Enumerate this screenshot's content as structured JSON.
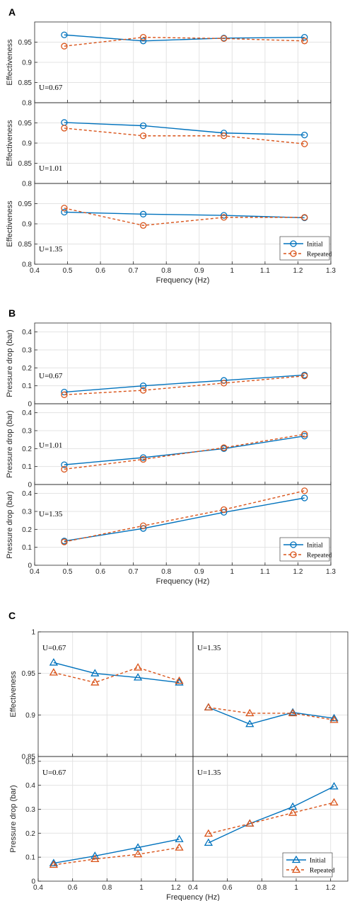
{
  "colors": {
    "initial": "#0072BD",
    "repeated": "#D95319",
    "grid": "#e3e3e3",
    "axis": "#262626"
  },
  "chart_data": [
    {
      "panel": "A",
      "type": "line",
      "layout": "stacked",
      "xlabel": "Frequency (Hz)",
      "xlim": [
        0.4,
        1.3
      ],
      "xticks": [
        "0.4",
        "0.5",
        "0.6",
        "0.7",
        "0.8",
        "0.9",
        "1",
        "1.1",
        "1.2",
        "1.3"
      ],
      "marker": "circle",
      "legend": {
        "entries": [
          "Initial",
          "Repeated"
        ],
        "placement": "bottom-right of last subplot"
      },
      "subplots": [
        {
          "annotation": "U=0.67",
          "ylabel": "Effectiveness",
          "ylim": [
            0.8,
            1.0
          ],
          "yticks": [
            "0.8",
            "0.85",
            "0.9",
            "0.95"
          ],
          "series": [
            {
              "name": "Initial",
              "x": [
                0.49,
                0.73,
                0.975,
                1.22
              ],
              "y": [
                0.968,
                0.953,
                0.96,
                0.962
              ]
            },
            {
              "name": "Repeated",
              "x": [
                0.49,
                0.73,
                0.975,
                1.22
              ],
              "y": [
                0.94,
                0.962,
                0.959,
                0.953
              ]
            }
          ]
        },
        {
          "annotation": "U=1.01",
          "ylabel": "Effectiveness",
          "ylim": [
            0.8,
            1.0
          ],
          "yticks": [
            "0.8",
            "0.85",
            "0.9",
            "0.95"
          ],
          "series": [
            {
              "name": "Initial",
              "x": [
                0.49,
                0.73,
                0.975,
                1.22
              ],
              "y": [
                0.951,
                0.943,
                0.925,
                0.92
              ]
            },
            {
              "name": "Repeated",
              "x": [
                0.49,
                0.73,
                0.975,
                1.22
              ],
              "y": [
                0.937,
                0.918,
                0.918,
                0.898
              ]
            }
          ]
        },
        {
          "annotation": "U=1.35",
          "ylabel": "Effectiveness",
          "ylim": [
            0.8,
            1.0
          ],
          "yticks": [
            "0.8",
            "0.85",
            "0.9",
            "0.95"
          ],
          "series": [
            {
              "name": "Initial",
              "x": [
                0.49,
                0.73,
                0.975,
                1.22
              ],
              "y": [
                0.929,
                0.924,
                0.921,
                0.915
              ]
            },
            {
              "name": "Repeated",
              "x": [
                0.49,
                0.73,
                0.975,
                1.22
              ],
              "y": [
                0.939,
                0.896,
                0.916,
                0.916
              ]
            }
          ]
        }
      ]
    },
    {
      "panel": "B",
      "type": "line",
      "layout": "stacked",
      "xlabel": "Frequency (Hz)",
      "xlim": [
        0.4,
        1.3
      ],
      "xticks": [
        "0.4",
        "0.5",
        "0.6",
        "0.7",
        "0.8",
        "0.9",
        "1",
        "1.1",
        "1.2",
        "1.3"
      ],
      "marker": "circle",
      "legend": {
        "entries": [
          "Initial",
          "Repeated"
        ],
        "placement": "bottom-right of last subplot"
      },
      "subplots": [
        {
          "annotation": "U=0.67",
          "ylabel": "Pressure drop (bar)",
          "ylim": [
            0,
            0.45
          ],
          "yticks": [
            "0",
            "0.1",
            "0.2",
            "0.3",
            "0.4"
          ],
          "series": [
            {
              "name": "Initial",
              "x": [
                0.49,
                0.73,
                0.975,
                1.22
              ],
              "y": [
                0.065,
                0.1,
                0.13,
                0.16
              ]
            },
            {
              "name": "Repeated",
              "x": [
                0.49,
                0.73,
                0.975,
                1.22
              ],
              "y": [
                0.05,
                0.075,
                0.115,
                0.155
              ]
            }
          ]
        },
        {
          "annotation": "U=1.01",
          "ylabel": "Pressure drop (bar)",
          "ylim": [
            0,
            0.45
          ],
          "yticks": [
            "0",
            "0.1",
            "0.2",
            "0.3",
            "0.4"
          ],
          "series": [
            {
              "name": "Initial",
              "x": [
                0.49,
                0.73,
                0.975,
                1.22
              ],
              "y": [
                0.11,
                0.15,
                0.2,
                0.27
              ]
            },
            {
              "name": "Repeated",
              "x": [
                0.49,
                0.73,
                0.975,
                1.22
              ],
              "y": [
                0.085,
                0.14,
                0.205,
                0.28
              ]
            }
          ]
        },
        {
          "annotation": "U=1.35",
          "ylabel": "Pressure drop (bar)",
          "ylim": [
            0,
            0.45
          ],
          "yticks": [
            "0",
            "0.1",
            "0.2",
            "0.3",
            "0.4"
          ],
          "series": [
            {
              "name": "Initial",
              "x": [
                0.49,
                0.73,
                0.975,
                1.22
              ],
              "y": [
                0.135,
                0.205,
                0.295,
                0.375
              ]
            },
            {
              "name": "Repeated",
              "x": [
                0.49,
                0.73,
                0.975,
                1.22
              ],
              "y": [
                0.13,
                0.22,
                0.31,
                0.415
              ]
            }
          ]
        }
      ]
    },
    {
      "panel": "C",
      "type": "line",
      "layout": "grid-2x2",
      "xlabel": "Frequency (Hz)",
      "xlim": [
        0.4,
        1.3
      ],
      "xticks": [
        "0.4",
        "0.6",
        "0.8",
        "1",
        "1.2"
      ],
      "marker": "triangle",
      "legend": {
        "entries": [
          "Initial",
          "Repeated"
        ],
        "placement": "bottom-right of last subplot"
      },
      "rows": [
        {
          "ylabel": "Effectiveness",
          "ylim": [
            0.85,
            1.0
          ],
          "yticks": [
            "0.85",
            "0.9",
            "0.95",
            "1"
          ]
        },
        {
          "ylabel": "Pressure drop (bar)",
          "ylim": [
            0,
            0.52
          ],
          "yticks": [
            "0",
            "0.1",
            "0.2",
            "0.3",
            "0.4",
            "0.5"
          ]
        }
      ],
      "subplots": [
        {
          "row": 0,
          "col": 0,
          "annotation": "U=0.67",
          "series": [
            {
              "name": "Initial",
              "x": [
                0.49,
                0.73,
                0.98,
                1.22
              ],
              "y": [
                0.963,
                0.95,
                0.945,
                0.939
              ]
            },
            {
              "name": "Repeated",
              "x": [
                0.49,
                0.73,
                0.98,
                1.22
              ],
              "y": [
                0.951,
                0.939,
                0.957,
                0.941
              ]
            }
          ]
        },
        {
          "row": 0,
          "col": 1,
          "annotation": "U=1.35",
          "series": [
            {
              "name": "Initial",
              "x": [
                0.49,
                0.73,
                0.98,
                1.22
              ],
              "y": [
                0.909,
                0.889,
                0.903,
                0.896
              ]
            },
            {
              "name": "Repeated",
              "x": [
                0.49,
                0.73,
                0.98,
                1.22
              ],
              "y": [
                0.909,
                0.902,
                0.902,
                0.894
              ]
            }
          ]
        },
        {
          "row": 1,
          "col": 0,
          "annotation": "U=0.67",
          "series": [
            {
              "name": "Initial",
              "x": [
                0.49,
                0.73,
                0.98,
                1.22
              ],
              "y": [
                0.075,
                0.105,
                0.14,
                0.175
              ]
            },
            {
              "name": "Repeated",
              "x": [
                0.49,
                0.73,
                0.98,
                1.22
              ],
              "y": [
                0.068,
                0.092,
                0.112,
                0.14
              ]
            }
          ]
        },
        {
          "row": 1,
          "col": 1,
          "annotation": "U=1.35",
          "series": [
            {
              "name": "Initial",
              "x": [
                0.49,
                0.73,
                0.98,
                1.22
              ],
              "y": [
                0.16,
                0.24,
                0.31,
                0.395
              ]
            },
            {
              "name": "Repeated",
              "x": [
                0.49,
                0.73,
                0.98,
                1.22
              ],
              "y": [
                0.198,
                0.24,
                0.285,
                0.328
              ]
            }
          ]
        }
      ]
    }
  ]
}
